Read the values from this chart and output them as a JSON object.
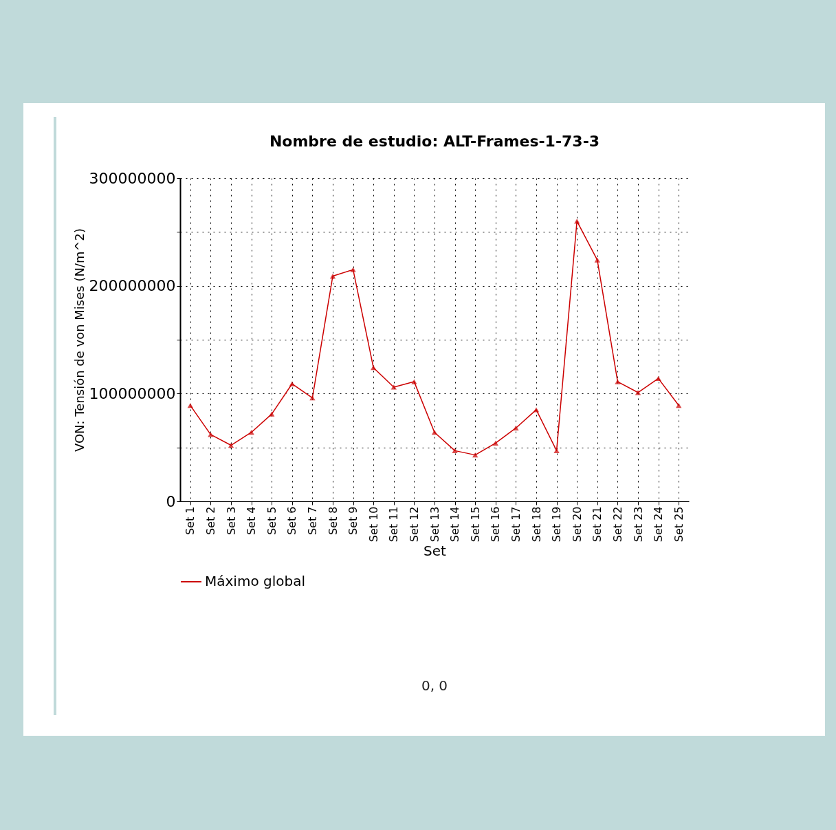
{
  "chart_data": {
    "type": "line",
    "title": "Nombre de estudio: ALT-Frames-1-73-3",
    "xlabel": "Set",
    "ylabel": "VON:   Tensión de von Mises (N/m^2)",
    "categories": [
      "Set 1",
      "Set 2",
      "Set 3",
      "Set 4",
      "Set 5",
      "Set 6",
      "Set 7",
      "Set 8",
      "Set 9",
      "Set 10",
      "Set 11",
      "Set 12",
      "Set 13",
      "Set 14",
      "Set 15",
      "Set 16",
      "Set 17",
      "Set 18",
      "Set 19",
      "Set 20",
      "Set 21",
      "Set 22",
      "Set 23",
      "Set 24",
      "Set 25"
    ],
    "series": [
      {
        "name": "Máximo global",
        "color": "#cc0000",
        "values": [
          89000000,
          62000000,
          52000000,
          64000000,
          81000000,
          109000000,
          96000000,
          209000000,
          215000000,
          124000000,
          106000000,
          111000000,
          64000000,
          47000000,
          43000000,
          54000000,
          68000000,
          85000000,
          47000000,
          260000000,
          224000000,
          111000000,
          101000000,
          114000000,
          89000000
        ]
      }
    ],
    "ylim": [
      0,
      300000000
    ],
    "yticks": [
      0,
      {
        "value": 50000000,
        "label": null
      },
      100000000,
      {
        "value": 150000000,
        "label": null
      },
      200000000,
      {
        "value": 250000000,
        "label": null
      },
      300000000
    ],
    "grid": true,
    "legend": "bottom",
    "marker": "triangle",
    "line_style": "solid",
    "annotations": [
      "0, 0"
    ]
  }
}
